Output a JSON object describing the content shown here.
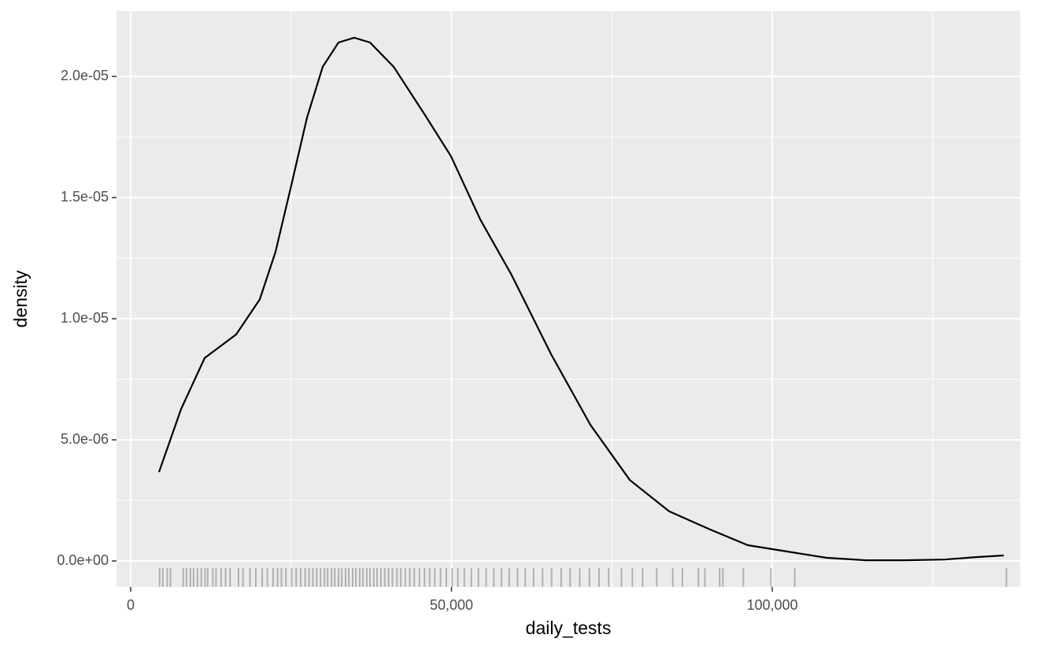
{
  "chart_data": {
    "type": "density",
    "xlabel": "daily_tests",
    "ylabel": "density",
    "x": [
      4420,
      7850,
      11530,
      16440,
      20120,
      22580,
      25030,
      27480,
      29940,
      32390,
      34850,
      37300,
      40980,
      45890,
      49940,
      54480,
      59390,
      65520,
      71660,
      77800,
      83930,
      90060,
      96200,
      102330,
      108470,
      114600,
      120740,
      126870,
      131780,
      136080
    ],
    "values": [
      3.67e-06,
      6.27e-06,
      8.38e-06,
      9.35e-06,
      1.08e-05,
      1.276e-05,
      1.55e-05,
      1.83e-05,
      2.04e-05,
      2.14e-05,
      2.16e-05,
      2.14e-05,
      2.04e-05,
      1.84e-05,
      1.67e-05,
      1.41e-05,
      1.18e-05,
      8.54e-06,
      5.62e-06,
      3.34e-06,
      2.05e-06,
      1.33e-06,
      6.5e-07,
      3.9e-07,
      1.3e-07,
      3e-08,
      3e-08,
      6e-08,
      1.6e-07,
      2.3e-07
    ],
    "color": "#000000",
    "rug": [
      4500,
      5000,
      5700,
      6200,
      8200,
      8700,
      9300,
      9800,
      10400,
      11000,
      11600,
      12000,
      12800,
      13300,
      14100,
      14800,
      15500,
      16800,
      17500,
      18600,
      19500,
      20500,
      21300,
      22200,
      22900,
      23500,
      24200,
      25100,
      25800,
      26500,
      27200,
      27800,
      28400,
      29000,
      29600,
      30200,
      30700,
      31300,
      31800,
      32400,
      32900,
      33500,
      34000,
      34600,
      35100,
      35700,
      36200,
      36800,
      37300,
      37900,
      38400,
      39000,
      39600,
      40200,
      40800,
      41500,
      42100,
      42800,
      43500,
      44200,
      45000,
      45800,
      46600,
      47400,
      48300,
      49200,
      50100,
      51000,
      52000,
      53100,
      54200,
      55400,
      56600,
      57800,
      59000,
      60300,
      61500,
      62800,
      64200,
      65600,
      67100,
      68500,
      70000,
      71500,
      73000,
      74500,
      76500,
      78200,
      79800,
      82000,
      84500,
      86000,
      88500,
      89500,
      91800,
      92300,
      95500,
      99800,
      103500,
      136500
    ],
    "xlim": [
      -2209,
      138650
    ],
    "ylim": [
      -1.07e-06,
      2.27e-05
    ],
    "xticks": [
      0,
      {
        "value": 50000,
        "label": "50,000"
      },
      {
        "value": 100000,
        "label": "100,000"
      }
    ],
    "yticks": [
      {
        "value": 0,
        "label": "0.0e+00"
      },
      {
        "value": 5e-06,
        "label": "5.0e-06"
      },
      {
        "value": 1e-05,
        "label": "1.0e-05"
      },
      {
        "value": 1.5e-05,
        "label": "1.5e-05"
      },
      {
        "value": 2e-05,
        "label": "2.0e-05"
      }
    ],
    "minor_xticks": [
      25000,
      75000,
      125000
    ],
    "minor_yticks": [
      2.5e-06,
      7.5e-06,
      1.25e-05,
      1.75e-05
    ],
    "grid": true
  }
}
